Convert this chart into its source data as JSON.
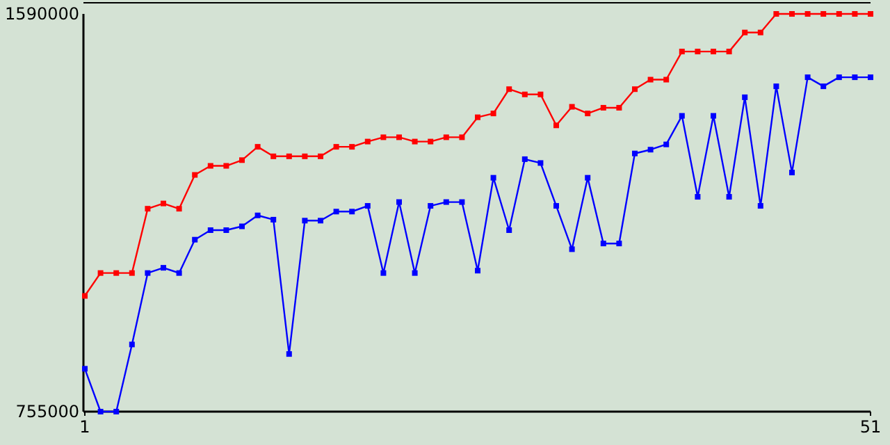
{
  "chart_data": {
    "type": "line",
    "x": [
      1,
      2,
      3,
      4,
      5,
      6,
      7,
      8,
      9,
      10,
      11,
      12,
      13,
      14,
      15,
      16,
      17,
      18,
      19,
      20,
      21,
      22,
      23,
      24,
      25,
      26,
      27,
      28,
      29,
      30,
      31,
      32,
      33,
      34,
      35,
      36,
      37,
      38,
      39,
      40,
      41,
      42,
      43,
      44,
      45,
      46,
      47,
      48,
      49,
      50,
      51
    ],
    "series": [
      {
        "color": "#ff0000",
        "values": [
          998000,
          1046000,
          1046000,
          1046000,
          1181000,
          1192000,
          1181000,
          1252000,
          1271000,
          1271000,
          1283000,
          1311000,
          1291000,
          1291000,
          1291000,
          1291000,
          1311000,
          1311000,
          1322000,
          1331000,
          1331000,
          1322000,
          1322000,
          1331000,
          1331000,
          1373000,
          1381000,
          1432000,
          1421000,
          1421000,
          1356000,
          1395000,
          1381000,
          1393000,
          1393000,
          1432000,
          1452000,
          1452000,
          1511000,
          1511000,
          1511000,
          1511000,
          1551000,
          1551000,
          1590000,
          1590000,
          1590000,
          1590000,
          1590000,
          1590000,
          1590000
        ]
      },
      {
        "color": "#0000ff",
        "values": [
          845000,
          755000,
          755000,
          896000,
          1046000,
          1057000,
          1046000,
          1116000,
          1136000,
          1136000,
          1144000,
          1167000,
          1158000,
          876000,
          1156000,
          1156000,
          1175000,
          1175000,
          1187000,
          1046000,
          1195000,
          1046000,
          1187000,
          1195000,
          1195000,
          1051000,
          1246000,
          1136000,
          1285000,
          1277000,
          1187000,
          1096000,
          1246000,
          1108000,
          1108000,
          1297000,
          1305000,
          1316000,
          1376000,
          1206000,
          1376000,
          1206000,
          1415000,
          1187000,
          1438000,
          1257000,
          1457000,
          1438000,
          1457000,
          1457000,
          1457000
        ]
      }
    ],
    "xlim": [
      1,
      51
    ],
    "xticks": [
      1,
      51
    ],
    "ylim": [
      755000,
      1590000
    ],
    "yticks": [
      755000,
      1590000
    ],
    "marker": "square",
    "line_style": "solid",
    "grid": false
  }
}
